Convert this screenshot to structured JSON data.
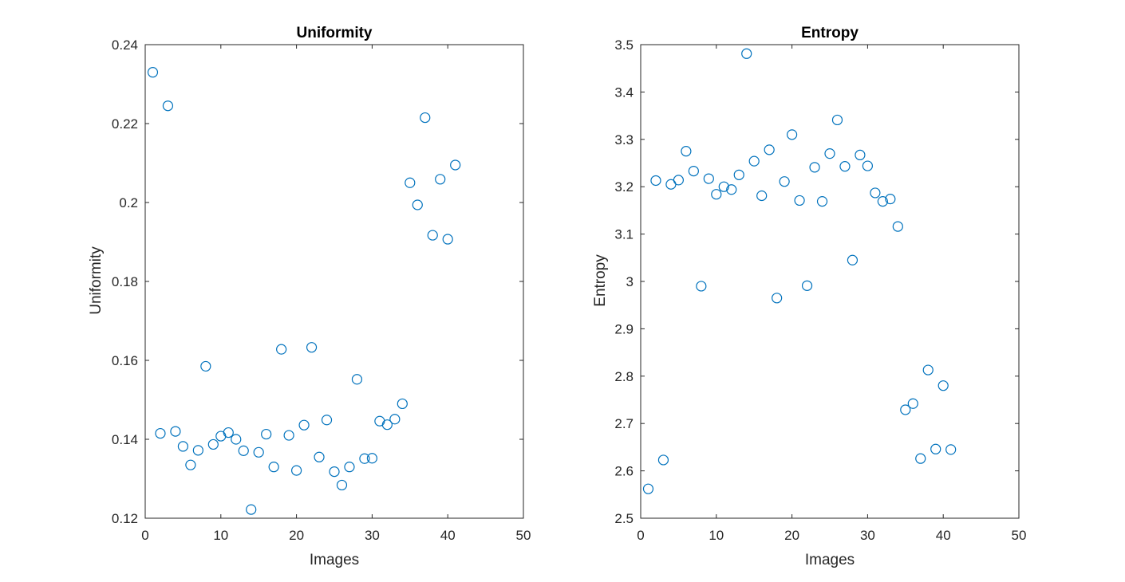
{
  "colors": {
    "marker": "#0072BD",
    "axis": "#262626",
    "background": "#ffffff"
  },
  "chart_data": [
    {
      "type": "scatter",
      "title": "Uniformity",
      "xlabel": "Images",
      "ylabel": "Uniformity",
      "xlim": [
        0,
        50
      ],
      "ylim": [
        0.12,
        0.24
      ],
      "xticks": [
        0,
        10,
        20,
        30,
        40,
        50
      ],
      "yticks": [
        0.12,
        0.14,
        0.16,
        0.18,
        0.2,
        0.22,
        0.24
      ],
      "xtick_labels": [
        "0",
        "10",
        "20",
        "30",
        "40",
        "50"
      ],
      "ytick_labels": [
        "0.12",
        "0.14",
        "0.16",
        "0.18",
        "0.2",
        "0.22",
        "0.24"
      ],
      "grid": false,
      "marker": "circle-open",
      "x": [
        1,
        2,
        3,
        4,
        5,
        6,
        7,
        8,
        9,
        10,
        11,
        12,
        13,
        14,
        15,
        16,
        17,
        18,
        19,
        20,
        21,
        22,
        23,
        24,
        25,
        26,
        27,
        28,
        29,
        30,
        31,
        32,
        33,
        34,
        35,
        36,
        37,
        38,
        39,
        40,
        41
      ],
      "y": [
        0.233,
        0.1415,
        0.2245,
        0.142,
        0.1382,
        0.1335,
        0.1372,
        0.1585,
        0.1387,
        0.1408,
        0.1417,
        0.14,
        0.1371,
        0.1222,
        0.1367,
        0.1413,
        0.133,
        0.1628,
        0.141,
        0.1321,
        0.1436,
        0.1633,
        0.1355,
        0.1449,
        0.1318,
        0.1284,
        0.133,
        0.1552,
        0.1351,
        0.1352,
        0.1446,
        0.1437,
        0.1451,
        0.149,
        0.205,
        0.1994,
        0.2215,
        0.1917,
        0.2059,
        0.1907,
        0.2095
      ]
    },
    {
      "type": "scatter",
      "title": "Entropy",
      "xlabel": "Images",
      "ylabel": "Entropy",
      "xlim": [
        0,
        50
      ],
      "ylim": [
        2.5,
        3.5
      ],
      "xticks": [
        0,
        10,
        20,
        30,
        40,
        50
      ],
      "yticks": [
        2.5,
        2.6,
        2.7,
        2.8,
        2.9,
        3.0,
        3.1,
        3.2,
        3.3,
        3.4,
        3.5
      ],
      "xtick_labels": [
        "0",
        "10",
        "20",
        "30",
        "40",
        "50"
      ],
      "ytick_labels": [
        "2.5",
        "2.6",
        "2.7",
        "2.8",
        "2.9",
        "3",
        "3.1",
        "3.2",
        "3.3",
        "3.4",
        "3.5"
      ],
      "grid": false,
      "marker": "circle-open",
      "x": [
        1,
        2,
        3,
        4,
        5,
        6,
        7,
        8,
        9,
        10,
        11,
        12,
        13,
        14,
        15,
        16,
        17,
        18,
        19,
        20,
        21,
        22,
        23,
        24,
        25,
        26,
        27,
        28,
        29,
        30,
        31,
        32,
        33,
        34,
        35,
        36,
        37,
        38,
        39,
        40,
        41
      ],
      "y": [
        2.562,
        3.213,
        2.623,
        3.205,
        3.214,
        3.275,
        3.233,
        2.99,
        3.217,
        3.184,
        3.2,
        3.194,
        3.225,
        3.481,
        3.254,
        3.181,
        3.278,
        2.965,
        3.211,
        3.31,
        3.171,
        2.991,
        3.241,
        3.169,
        3.27,
        3.341,
        3.243,
        3.045,
        3.267,
        3.244,
        3.187,
        3.169,
        3.174,
        3.116,
        2.729,
        2.742,
        2.626,
        2.813,
        2.646,
        2.78,
        2.645
      ]
    }
  ]
}
